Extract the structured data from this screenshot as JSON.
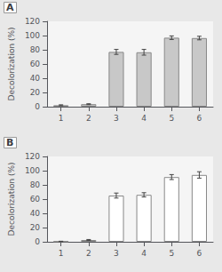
{
  "chart_data": [
    {
      "type": "bar",
      "title": "A",
      "categories": [
        1,
        2,
        3,
        4,
        5,
        6
      ],
      "values": [
        2.0,
        3.5,
        77.0,
        76.5,
        97.0,
        96.5
      ],
      "errors": [
        0.6,
        0.6,
        3.5,
        4.0,
        2.5,
        2.5
      ],
      "color": "#c8c8c8",
      "ylim": [
        0,
        120
      ],
      "yticks": [
        0,
        20,
        40,
        60,
        80,
        100,
        120
      ],
      "ylabel": "Decolorization (%)",
      "grid": false
    },
    {
      "type": "bar",
      "title": "B",
      "categories": [
        1,
        2,
        3,
        4,
        5,
        6
      ],
      "values": [
        0.5,
        2.5,
        65.0,
        66.0,
        91.0,
        94.0
      ],
      "errors": [
        0.3,
        0.7,
        3.5,
        3.0,
        3.5,
        4.5
      ],
      "color": "#ffffff",
      "ylim": [
        0,
        120
      ],
      "yticks": [
        0,
        20,
        40,
        60,
        80,
        100,
        120
      ],
      "ylabel": "Decolorization (%)",
      "grid": false
    }
  ]
}
